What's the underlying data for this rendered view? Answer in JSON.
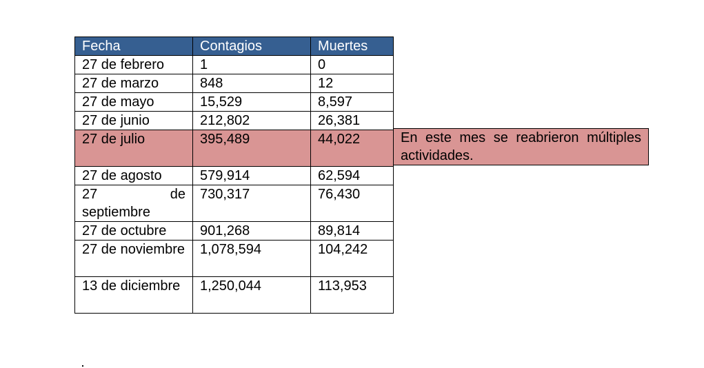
{
  "colors": {
    "header_bg": "#365F91",
    "header_text": "#FFFFFF",
    "highlight_bg": "#D99594",
    "border": "#000000"
  },
  "table": {
    "headers": [
      "Fecha",
      "Contagios",
      "Muertes"
    ],
    "rows": [
      {
        "fecha": "27 de febrero",
        "contagios": "1",
        "muertes": "0"
      },
      {
        "fecha": "27 de marzo",
        "contagios": "848",
        "muertes": "12"
      },
      {
        "fecha": "27 de mayo",
        "contagios": "15,529",
        "muertes": "8,597"
      },
      {
        "fecha": "27 de junio",
        "contagios": "212,802",
        "muertes": "26,381"
      },
      {
        "fecha": "27 de julio",
        "contagios": "395,489",
        "muertes": "44,022"
      },
      {
        "fecha": "27 de agosto",
        "contagios": "579,914",
        "muertes": "62,594"
      },
      {
        "fecha": "27 de septiembre",
        "contagios": "730,317",
        "muertes": "76,430"
      },
      {
        "fecha": "27 de octubre",
        "contagios": "901,268",
        "muertes": "89,814"
      },
      {
        "fecha": "27 de noviembre",
        "contagios": "1,078,594",
        "muertes": "104,242"
      },
      {
        "fecha": "13 de diciembre",
        "contagios": "1,250,044",
        "muertes": "113,953"
      }
    ]
  },
  "note": "En este mes se reabrieron múltiples actividades."
}
